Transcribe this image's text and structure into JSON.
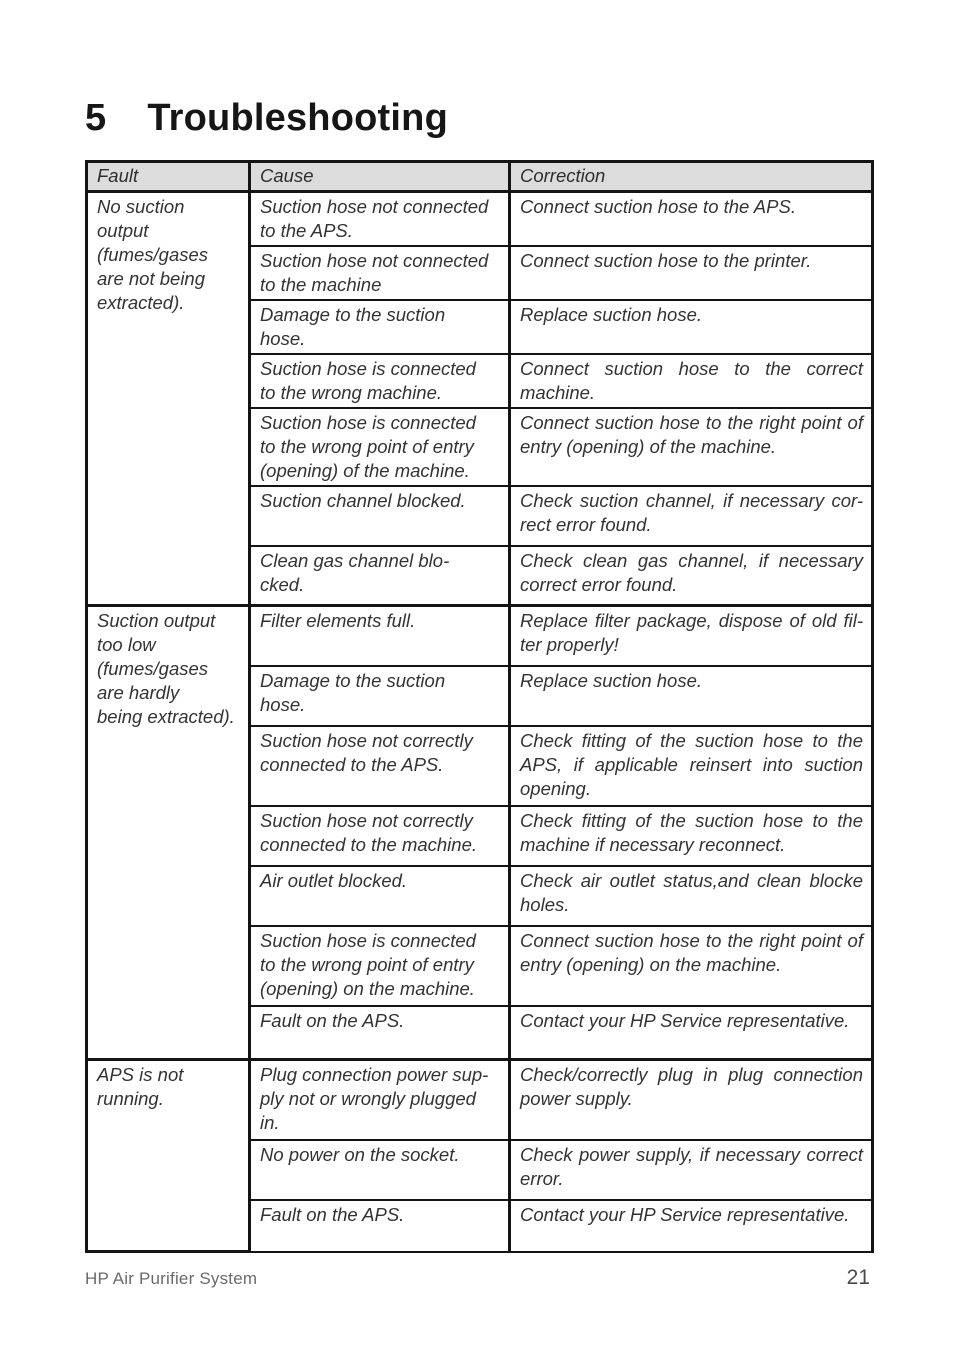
{
  "title": {
    "number": "5",
    "text": "Troubleshooting"
  },
  "table": {
    "headers": [
      "Fault",
      "Cause",
      "Correction"
    ],
    "groups": [
      {
        "fault": "No suction\noutput\n(fumes/gases\nare not being\nextracted).",
        "rows": [
          {
            "cause": "Suction hose not connected\nto the APS.",
            "correction": "Connect suction hose to the APS."
          },
          {
            "cause": "Suction hose not connected\nto the machine",
            "correction": "Connect suction hose to the printer."
          },
          {
            "cause": "Damage to the suction\nhose.",
            "correction": "Replace suction hose."
          },
          {
            "cause": "Suction hose is connected\nto the wrong machine.",
            "correction": "Connect suction hose to the correct\nmachine."
          },
          {
            "cause": "Suction hose is connected\nto the wrong point of entry\n(opening) of the machine.",
            "correction": "Connect suction hose to the right point of\nentry (opening) of the machine."
          },
          {
            "cause": "Suction channel blocked.",
            "correction": "Check suction channel, if necessary cor-\nrect error found."
          },
          {
            "cause": "Clean gas channel blo-\ncked.",
            "correction": "Check clean gas channel, if necessary\ncorrect error found."
          }
        ]
      },
      {
        "fault": "Suction output\ntoo low\n(fumes/gases\nare hardly\nbeing extracted).",
        "rows": [
          {
            "cause": "Filter elements full.",
            "correction": "Replace filter package, dispose of old fil-\nter properly!"
          },
          {
            "cause": "Damage to the suction\nhose.",
            "correction": "Replace suction hose."
          },
          {
            "cause": "Suction hose not correctly\nconnected to the APS.",
            "correction": "Check fitting of the suction hose to the\nAPS, if applicable reinsert into suction\nopening."
          },
          {
            "cause": "Suction hose not correctly\nconnected to the machine.",
            "correction": "Check fitting of the suction hose to the\nmachine if necessary reconnect."
          },
          {
            "cause": "Air outlet blocked.",
            "correction": "Check air outlet status,and clean blocke\nholes."
          },
          {
            "cause": "Suction hose is connected\nto the wrong point of entry\n(opening) on the machine.",
            "correction": "Connect suction hose to the right point of\nentry (opening) on the machine."
          },
          {
            "cause": "Fault on the APS.",
            "correction": "Contact your HP Service representative."
          }
        ]
      },
      {
        "fault": "APS is not\nrunning.",
        "rows": [
          {
            "cause": "Plug connection power sup-\nply not or wrongly plugged\nin.",
            "correction": "Check/correctly plug in plug connection\npower supply."
          },
          {
            "cause": "No power on the socket.",
            "correction": "Check power supply, if necessary correct\nerror."
          },
          {
            "cause": "Fault on the APS.",
            "correction": "Contact your HP Service representative."
          }
        ]
      }
    ]
  },
  "footer": {
    "left": "HP Air Purifier System",
    "page_number": "21"
  },
  "colors": {
    "header_bg": "#dcdcdc",
    "border": "#141414",
    "text": "#333333"
  }
}
